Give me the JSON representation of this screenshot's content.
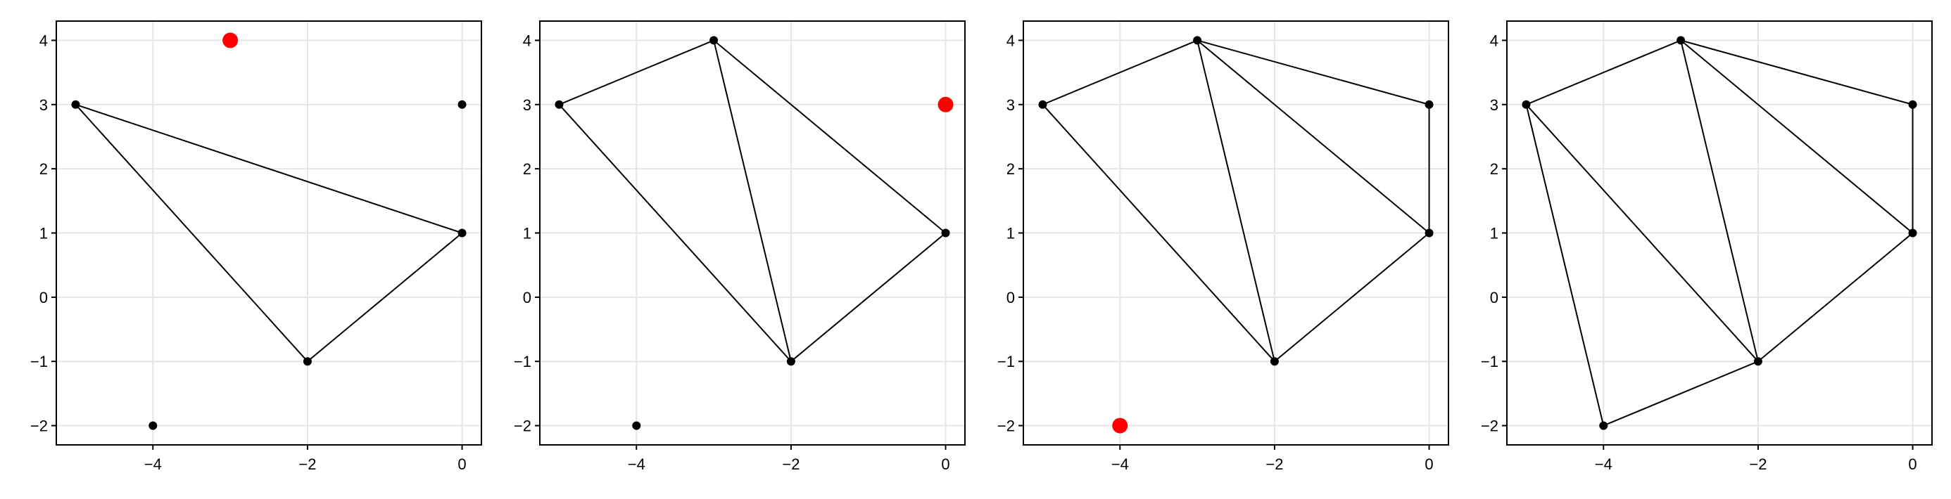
{
  "chart_data": [
    {
      "type": "scatter",
      "title": "",
      "xlabel": "",
      "ylabel": "",
      "xlim": [
        -5.25,
        0.25
      ],
      "ylim": [
        -2.3,
        4.3
      ],
      "xticks": [
        -4,
        -2,
        0
      ],
      "yticks": [
        -2,
        -1,
        0,
        1,
        2,
        3,
        4
      ],
      "xtick_labels": [
        "−4",
        "−2",
        "0"
      ],
      "ytick_labels": [
        "−2",
        "−1",
        "0",
        "1",
        "2",
        "3",
        "4"
      ],
      "grid": true,
      "points": [
        [
          -5,
          3
        ],
        [
          -2,
          -1
        ],
        [
          0,
          1
        ],
        [
          0,
          3
        ],
        [
          -4,
          -2
        ]
      ],
      "highlight": [
        [
          -3,
          4
        ]
      ],
      "highlight_color": "#ff0000",
      "edges": [
        [
          [
            -5,
            3
          ],
          [
            0,
            1
          ]
        ],
        [
          [
            0,
            1
          ],
          [
            -2,
            -1
          ]
        ],
        [
          [
            -2,
            -1
          ],
          [
            -5,
            3
          ]
        ]
      ]
    },
    {
      "type": "scatter",
      "title": "",
      "xlabel": "",
      "ylabel": "",
      "xlim": [
        -5.25,
        0.25
      ],
      "ylim": [
        -2.3,
        4.3
      ],
      "xticks": [
        -4,
        -2,
        0
      ],
      "yticks": [
        -2,
        -1,
        0,
        1,
        2,
        3,
        4
      ],
      "xtick_labels": [
        "−4",
        "−2",
        "0"
      ],
      "ytick_labels": [
        "−2",
        "−1",
        "0",
        "1",
        "2",
        "3",
        "4"
      ],
      "grid": true,
      "points": [
        [
          -5,
          3
        ],
        [
          -3,
          4
        ],
        [
          -2,
          -1
        ],
        [
          0,
          1
        ],
        [
          -4,
          -2
        ]
      ],
      "highlight": [
        [
          0,
          3
        ]
      ],
      "highlight_color": "#ff0000",
      "edges": [
        [
          [
            -5,
            3
          ],
          [
            -3,
            4
          ]
        ],
        [
          [
            -3,
            4
          ],
          [
            0,
            1
          ]
        ],
        [
          [
            0,
            1
          ],
          [
            -2,
            -1
          ]
        ],
        [
          [
            -2,
            -1
          ],
          [
            -5,
            3
          ]
        ],
        [
          [
            -3,
            4
          ],
          [
            -2,
            -1
          ]
        ]
      ]
    },
    {
      "type": "scatter",
      "title": "",
      "xlabel": "",
      "ylabel": "",
      "xlim": [
        -5.25,
        0.25
      ],
      "ylim": [
        -2.3,
        4.3
      ],
      "xticks": [
        -4,
        -2,
        0
      ],
      "yticks": [
        -2,
        -1,
        0,
        1,
        2,
        3,
        4
      ],
      "xtick_labels": [
        "−4",
        "−2",
        "0"
      ],
      "ytick_labels": [
        "−2",
        "−1",
        "0",
        "1",
        "2",
        "3",
        "4"
      ],
      "grid": true,
      "points": [
        [
          -5,
          3
        ],
        [
          -3,
          4
        ],
        [
          0,
          3
        ],
        [
          0,
          1
        ],
        [
          -2,
          -1
        ]
      ],
      "highlight": [
        [
          -4,
          -2
        ]
      ],
      "highlight_color": "#ff0000",
      "edges": [
        [
          [
            -5,
            3
          ],
          [
            -3,
            4
          ]
        ],
        [
          [
            -3,
            4
          ],
          [
            0,
            3
          ]
        ],
        [
          [
            0,
            3
          ],
          [
            0,
            1
          ]
        ],
        [
          [
            0,
            1
          ],
          [
            -2,
            -1
          ]
        ],
        [
          [
            -2,
            -1
          ],
          [
            -5,
            3
          ]
        ],
        [
          [
            -3,
            4
          ],
          [
            -2,
            -1
          ]
        ],
        [
          [
            -3,
            4
          ],
          [
            0,
            1
          ]
        ]
      ]
    },
    {
      "type": "scatter",
      "title": "",
      "xlabel": "",
      "ylabel": "",
      "xlim": [
        -5.25,
        0.25
      ],
      "ylim": [
        -2.3,
        4.3
      ],
      "xticks": [
        -4,
        -2,
        0
      ],
      "yticks": [
        -2,
        -1,
        0,
        1,
        2,
        3,
        4
      ],
      "xtick_labels": [
        "−4",
        "−2",
        "0"
      ],
      "ytick_labels": [
        "−2",
        "−1",
        "0",
        "1",
        "2",
        "3",
        "4"
      ],
      "grid": true,
      "points": [
        [
          -5,
          3
        ],
        [
          -3,
          4
        ],
        [
          0,
          3
        ],
        [
          0,
          1
        ],
        [
          -2,
          -1
        ],
        [
          -4,
          -2
        ]
      ],
      "highlight": [],
      "highlight_color": "#ff0000",
      "edges": [
        [
          [
            -5,
            3
          ],
          [
            -3,
            4
          ]
        ],
        [
          [
            -3,
            4
          ],
          [
            0,
            3
          ]
        ],
        [
          [
            0,
            3
          ],
          [
            0,
            1
          ]
        ],
        [
          [
            0,
            1
          ],
          [
            -2,
            -1
          ]
        ],
        [
          [
            -2,
            -1
          ],
          [
            -4,
            -2
          ]
        ],
        [
          [
            -4,
            -2
          ],
          [
            -5,
            3
          ]
        ],
        [
          [
            -3,
            4
          ],
          [
            -2,
            -1
          ]
        ],
        [
          [
            -3,
            4
          ],
          [
            0,
            1
          ]
        ],
        [
          [
            -5,
            3
          ],
          [
            -2,
            -1
          ]
        ]
      ]
    }
  ]
}
